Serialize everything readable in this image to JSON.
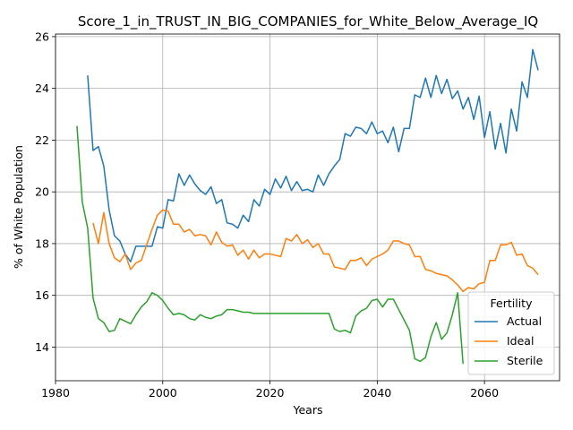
{
  "chart_data": {
    "type": "line",
    "title": "Score_1_in_TRUST_IN_BIG_COMPANIES_for_White_Below_Average_IQ",
    "xlabel": "Years",
    "ylabel": "% of White Population",
    "xlim": [
      1980,
      2074
    ],
    "ylim": [
      12.7,
      26.1
    ],
    "xticks": [
      1980,
      2000,
      2020,
      2040,
      2060
    ],
    "yticks": [
      14,
      16,
      18,
      20,
      22,
      24,
      26
    ],
    "grid": true,
    "legend": {
      "title": "Fertility",
      "placement": "lower-right"
    },
    "series": [
      {
        "name": "Actual",
        "color": "#1f77b4",
        "x": [
          1986,
          1987,
          1988,
          1989,
          1990,
          1991,
          1992,
          1993,
          1994,
          1995,
          1996,
          1997,
          1998,
          1999,
          2000,
          2001,
          2002,
          2003,
          2004,
          2005,
          2006,
          2007,
          2008,
          2009,
          2010,
          2011,
          2012,
          2013,
          2014,
          2015,
          2016,
          2017,
          2018,
          2019,
          2020,
          2021,
          2022,
          2023,
          2024,
          2025,
          2026,
          2027,
          2028,
          2029,
          2030,
          2031,
          2032,
          2033,
          2034,
          2035,
          2036,
          2037,
          2038,
          2039,
          2040,
          2041,
          2042,
          2043,
          2044,
          2045,
          2046,
          2047,
          2048,
          2049,
          2050,
          2051,
          2052,
          2053,
          2054,
          2055,
          2056,
          2057,
          2058,
          2059,
          2060,
          2061,
          2062,
          2063,
          2064,
          2065,
          2066,
          2067,
          2068,
          2069,
          2070
        ],
        "y": [
          24.5,
          21.6,
          21.75,
          21.0,
          19.3,
          18.3,
          18.1,
          17.6,
          17.3,
          17.9,
          17.9,
          17.9,
          17.9,
          18.65,
          18.6,
          19.7,
          19.65,
          20.7,
          20.25,
          20.65,
          20.3,
          20.05,
          19.9,
          20.2,
          19.55,
          19.7,
          18.8,
          18.75,
          18.6,
          19.1,
          18.85,
          19.7,
          19.45,
          20.1,
          19.9,
          20.5,
          20.15,
          20.6,
          20.05,
          20.4,
          20.05,
          20.1,
          20.0,
          20.65,
          20.25,
          20.7,
          21.0,
          21.25,
          22.25,
          22.15,
          22.5,
          22.45,
          22.25,
          22.7,
          22.25,
          22.35,
          21.9,
          22.5,
          21.55,
          22.45,
          22.45,
          23.75,
          23.65,
          24.4,
          23.65,
          24.5,
          23.8,
          24.35,
          23.6,
          23.9,
          23.2,
          23.65,
          22.8,
          23.7,
          22.1,
          23.1,
          21.65,
          22.65,
          21.5,
          23.2,
          22.35,
          24.25,
          23.65,
          25.5,
          24.7
        ]
      },
      {
        "name": "Ideal",
        "color": "#ff7f0e",
        "x": [
          1987,
          1988,
          1989,
          1990,
          1991,
          1992,
          1993,
          1994,
          1995,
          1996,
          1997,
          1998,
          1999,
          2000,
          2001,
          2002,
          2003,
          2004,
          2005,
          2006,
          2007,
          2008,
          2009,
          2010,
          2011,
          2012,
          2013,
          2014,
          2015,
          2016,
          2017,
          2018,
          2019,
          2020,
          2021,
          2022,
          2023,
          2024,
          2025,
          2026,
          2027,
          2028,
          2029,
          2030,
          2031,
          2032,
          2033,
          2034,
          2035,
          2036,
          2037,
          2038,
          2039,
          2040,
          2041,
          2042,
          2043,
          2044,
          2045,
          2046,
          2047,
          2048,
          2049,
          2050,
          2051,
          2052,
          2053,
          2054,
          2055,
          2056,
          2057,
          2058,
          2059,
          2060,
          2061,
          2062,
          2063,
          2064,
          2065,
          2066,
          2067,
          2068,
          2069,
          2070
        ],
        "y": [
          18.8,
          18.0,
          19.2,
          18.0,
          17.45,
          17.3,
          17.6,
          17.0,
          17.25,
          17.35,
          17.95,
          18.55,
          19.1,
          19.3,
          19.25,
          18.75,
          18.75,
          18.45,
          18.55,
          18.3,
          18.35,
          18.3,
          17.95,
          18.45,
          18.05,
          17.9,
          17.95,
          17.55,
          17.75,
          17.4,
          17.75,
          17.45,
          17.6,
          17.6,
          17.55,
          17.5,
          18.2,
          18.1,
          18.35,
          18.0,
          18.15,
          17.85,
          18.0,
          17.6,
          17.6,
          17.1,
          17.05,
          17.0,
          17.35,
          17.35,
          17.45,
          17.15,
          17.4,
          17.5,
          17.6,
          17.75,
          18.1,
          18.1,
          18.0,
          17.95,
          17.5,
          17.5,
          17.0,
          16.95,
          16.85,
          16.8,
          16.75,
          16.6,
          16.4,
          16.15,
          16.3,
          16.25,
          16.45,
          16.5,
          17.35,
          17.35,
          17.95,
          17.95,
          18.05,
          17.55,
          17.6,
          17.15,
          17.05,
          16.8
        ]
      },
      {
        "name": "Sterile",
        "color": "#2ca02c",
        "x": [
          1984,
          1985,
          1986,
          1987,
          1988,
          1989,
          1990,
          1991,
          1992,
          1993,
          1994,
          1995,
          1996,
          1997,
          1998,
          1999,
          2000,
          2001,
          2002,
          2003,
          2004,
          2005,
          2006,
          2007,
          2008,
          2009,
          2010,
          2011,
          2012,
          2013,
          2014,
          2015,
          2016,
          2017,
          2018,
          2019,
          2020,
          2021,
          2022,
          2023,
          2024,
          2025,
          2026,
          2027,
          2028,
          2029,
          2030,
          2031,
          2032,
          2033,
          2034,
          2035,
          2036,
          2037,
          2038,
          2039,
          2040,
          2041,
          2042,
          2043,
          2044,
          2045,
          2046,
          2047,
          2048,
          2049,
          2050,
          2051,
          2052,
          2053,
          2054,
          2055,
          2056
        ],
        "y": [
          22.55,
          19.6,
          18.6,
          15.9,
          15.1,
          14.95,
          14.6,
          14.65,
          15.1,
          15.0,
          14.9,
          15.25,
          15.55,
          15.75,
          16.1,
          16.0,
          15.8,
          15.5,
          15.25,
          15.3,
          15.25,
          15.1,
          15.05,
          15.25,
          15.15,
          15.1,
          15.2,
          15.25,
          15.45,
          15.45,
          15.4,
          15.35,
          15.35,
          15.3,
          15.3,
          15.3,
          15.3,
          15.3,
          15.3,
          15.3,
          15.3,
          15.3,
          15.3,
          15.3,
          15.3,
          15.3,
          15.3,
          15.3,
          14.7,
          14.6,
          14.65,
          14.55,
          15.2,
          15.4,
          15.5,
          15.8,
          15.85,
          15.55,
          15.85,
          15.85,
          15.45,
          15.05,
          14.65,
          13.55,
          13.45,
          13.6,
          14.4,
          14.95,
          14.3,
          14.55,
          15.25,
          16.1,
          13.35
        ]
      }
    ]
  }
}
